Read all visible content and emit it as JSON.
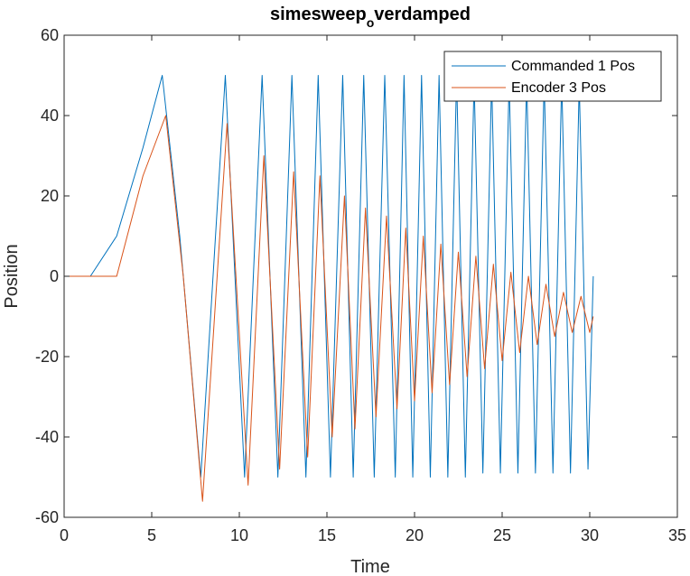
{
  "chart_data": {
    "type": "line",
    "title": {
      "main": "simesweep",
      "subscript": "o",
      "rest": "verdamped"
    },
    "xlabel": "Time",
    "ylabel": "Position",
    "xlim": [
      0,
      35
    ],
    "ylim": [
      -60,
      60
    ],
    "xticks": [
      0,
      5,
      10,
      15,
      20,
      25,
      30,
      35
    ],
    "yticks": [
      -60,
      -40,
      -20,
      0,
      20,
      40,
      60
    ],
    "xtick_labels": [
      "0",
      "5",
      "10",
      "15",
      "20",
      "25",
      "30",
      "35"
    ],
    "ytick_labels": [
      "-60",
      "-40",
      "-20",
      "0",
      "20",
      "40",
      "60"
    ],
    "grid": false,
    "legend_position": "top-right",
    "series": [
      {
        "name": "Commanded 1 Pos",
        "color": "#0072BD",
        "x": [
          0,
          1.5,
          3.0,
          4.5,
          5.6,
          6.6,
          7.8,
          9.2,
          10.3,
          11.3,
          12.2,
          13.0,
          13.8,
          14.5,
          15.2,
          15.9,
          16.5,
          17.1,
          17.7,
          18.3,
          18.9,
          19.4,
          19.9,
          20.4,
          20.9,
          21.4,
          21.9,
          22.4,
          22.9,
          23.4,
          23.9,
          24.4,
          24.9,
          25.4,
          25.9,
          26.4,
          26.9,
          27.4,
          27.9,
          28.4,
          28.9,
          29.4,
          29.9,
          30.2
        ],
        "y": [
          0,
          0,
          10,
          32,
          50,
          10,
          -50,
          50,
          -50,
          50,
          -50,
          50,
          -50,
          50,
          -50,
          50,
          -50,
          50,
          -50,
          50,
          -50,
          50,
          -50,
          50,
          -50,
          50,
          -50,
          50,
          -50,
          49,
          -49,
          49,
          -49,
          49,
          -49,
          49,
          -49,
          49,
          -49,
          49,
          -49,
          48,
          -48,
          0
        ]
      },
      {
        "name": "Encoder 3 Pos",
        "color": "#D95319",
        "x": [
          0,
          3.0,
          4.5,
          5.8,
          6.8,
          7.9,
          9.3,
          10.5,
          11.4,
          12.3,
          13.1,
          13.9,
          14.6,
          15.3,
          16.0,
          16.6,
          17.2,
          17.8,
          18.4,
          19.0,
          19.5,
          20.0,
          20.5,
          21.0,
          21.5,
          22.0,
          22.5,
          23.0,
          23.5,
          24.0,
          24.5,
          25.0,
          25.5,
          26.0,
          26.5,
          27.0,
          27.5,
          28.0,
          28.5,
          29.0,
          29.5,
          30.0,
          30.2
        ],
        "y": [
          0,
          0,
          25,
          40,
          0,
          -56,
          38,
          -52,
          30,
          -48,
          26,
          -45,
          25,
          -40,
          20,
          -38,
          17,
          -35,
          15,
          -33,
          12,
          -31,
          10,
          -29,
          8,
          -27,
          6,
          -25,
          5,
          -23,
          3,
          -21,
          1,
          -19,
          0,
          -17,
          -2,
          -15,
          -4,
          -14,
          -5,
          -14,
          -10
        ]
      }
    ]
  }
}
